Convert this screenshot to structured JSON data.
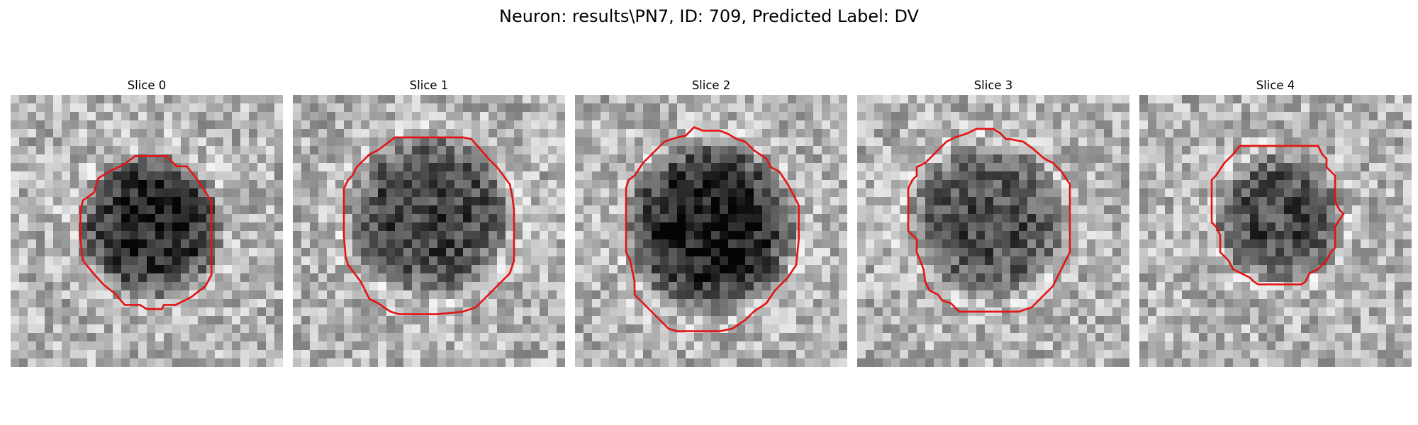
{
  "figure": {
    "title": "Neuron: results\\PN7, ID: 709, Predicted Label: DV",
    "contour_color": "#e41414",
    "grid_size": 32,
    "panels": [
      {
        "title": "Slice 0",
        "seed": 11,
        "blob": {
          "cx": 16.5,
          "cy": 15.5,
          "r": 9.0,
          "depth": 0.55
        },
        "contour": [
          [
            16.5,
            7.2
          ],
          [
            18.3,
            7.2
          ],
          [
            19.5,
            8.4
          ],
          [
            20.7,
            8.4
          ],
          [
            21.9,
            9.9
          ],
          [
            22.9,
            11.4
          ],
          [
            23.6,
            12.6
          ],
          [
            23.6,
            17.0
          ],
          [
            23.6,
            21.2
          ],
          [
            22.9,
            22.5
          ],
          [
            21.2,
            23.8
          ],
          [
            19.4,
            24.7
          ],
          [
            18.0,
            24.7
          ],
          [
            17.8,
            25.2
          ],
          [
            16.0,
            25.2
          ],
          [
            15.2,
            24.7
          ],
          [
            13.4,
            24.7
          ],
          [
            12.3,
            23.4
          ],
          [
            11.0,
            22.4
          ],
          [
            9.9,
            21.2
          ],
          [
            8.5,
            19.5
          ],
          [
            8.2,
            17.0
          ],
          [
            8.2,
            13.7
          ],
          [
            8.5,
            12.4
          ],
          [
            9.8,
            11.5
          ],
          [
            10.3,
            9.8
          ],
          [
            11.6,
            9.0
          ],
          [
            13.3,
            8.2
          ],
          [
            14.6,
            7.2
          ]
        ]
      },
      {
        "title": "Slice 1",
        "seed": 23,
        "blob": {
          "cx": 16.0,
          "cy": 14.0,
          "r": 10.0,
          "depth": 0.45
        },
        "contour": [
          [
            12.0,
            5.0
          ],
          [
            20.0,
            5.0
          ],
          [
            21.0,
            5.2
          ],
          [
            23.0,
            7.5
          ],
          [
            24.0,
            8.5
          ],
          [
            25.5,
            10.5
          ],
          [
            25.8,
            12.0
          ],
          [
            26.0,
            13.5
          ],
          [
            26.0,
            16.5
          ],
          [
            26.0,
            19.5
          ],
          [
            25.5,
            21.0
          ],
          [
            24.5,
            22.0
          ],
          [
            23.5,
            23.0
          ],
          [
            22.5,
            24.0
          ],
          [
            21.5,
            25.0
          ],
          [
            20.0,
            25.5
          ],
          [
            17.0,
            25.8
          ],
          [
            12.5,
            25.8
          ],
          [
            11.5,
            25.5
          ],
          [
            10.0,
            24.5
          ],
          [
            9.0,
            24.0
          ],
          [
            8.5,
            23.0
          ],
          [
            8.0,
            22.0
          ],
          [
            6.5,
            20.0
          ],
          [
            6.2,
            19.0
          ],
          [
            6.0,
            16.5
          ],
          [
            6.0,
            11.0
          ],
          [
            6.5,
            10.0
          ],
          [
            7.0,
            9.5
          ],
          [
            7.5,
            8.5
          ],
          [
            9.0,
            7.0
          ],
          [
            10.0,
            6.5
          ]
        ]
      },
      {
        "title": "Slice 2",
        "seed": 37,
        "blob": {
          "cx": 16.0,
          "cy": 15.5,
          "r": 10.5,
          "depth": 0.6
        },
        "contour": [
          [
            14.0,
            3.8
          ],
          [
            15.0,
            4.2
          ],
          [
            16.0,
            4.2
          ],
          [
            17.0,
            4.2
          ],
          [
            18.0,
            4.6
          ],
          [
            19.0,
            5.2
          ],
          [
            20.0,
            5.5
          ],
          [
            21.0,
            6.5
          ],
          [
            22.5,
            7.5
          ],
          [
            23.0,
            8.5
          ],
          [
            24.0,
            9.0
          ],
          [
            25.0,
            10.5
          ],
          [
            25.8,
            12.0
          ],
          [
            26.3,
            13.0
          ],
          [
            26.3,
            17.0
          ],
          [
            26.0,
            20.0
          ],
          [
            25.0,
            21.5
          ],
          [
            24.5,
            22.0
          ],
          [
            23.5,
            23.0
          ],
          [
            22.5,
            24.5
          ],
          [
            21.0,
            25.5
          ],
          [
            20.0,
            26.5
          ],
          [
            18.5,
            27.5
          ],
          [
            17.0,
            27.8
          ],
          [
            14.5,
            27.8
          ],
          [
            12.0,
            27.8
          ],
          [
            11.0,
            27.5
          ],
          [
            10.0,
            26.5
          ],
          [
            9.0,
            25.5
          ],
          [
            7.0,
            23.5
          ],
          [
            7.0,
            22.0
          ],
          [
            6.5,
            19.5
          ],
          [
            6.0,
            18.5
          ],
          [
            6.0,
            15.0
          ],
          [
            6.0,
            11.0
          ],
          [
            6.3,
            10.0
          ],
          [
            7.0,
            9.5
          ],
          [
            8.0,
            8.0
          ],
          [
            9.5,
            6.5
          ],
          [
            10.5,
            5.5
          ],
          [
            12.0,
            5.0
          ],
          [
            13.0,
            4.8
          ]
        ]
      },
      {
        "title": "Slice 3",
        "seed": 49,
        "blob": {
          "cx": 15.5,
          "cy": 14.8,
          "r": 9.5,
          "depth": 0.4
        },
        "contour": [
          [
            14.0,
            4.0
          ],
          [
            15.0,
            4.0
          ],
          [
            16.0,
            4.0
          ],
          [
            16.8,
            4.5
          ],
          [
            17.5,
            5.2
          ],
          [
            18.0,
            5.2
          ],
          [
            19.5,
            5.5
          ],
          [
            20.5,
            6.2
          ],
          [
            22.0,
            7.5
          ],
          [
            23.0,
            8.0
          ],
          [
            24.0,
            9.0
          ],
          [
            25.0,
            10.5
          ],
          [
            25.0,
            14.0
          ],
          [
            25.0,
            18.5
          ],
          [
            24.5,
            19.5
          ],
          [
            23.5,
            21.5
          ],
          [
            23.0,
            22.5
          ],
          [
            22.5,
            23.0
          ],
          [
            21.5,
            24.0
          ],
          [
            20.5,
            25.0
          ],
          [
            19.0,
            25.5
          ],
          [
            15.0,
            25.5
          ],
          [
            12.0,
            25.5
          ],
          [
            11.0,
            24.5
          ],
          [
            10.0,
            24.2
          ],
          [
            9.5,
            23.5
          ],
          [
            8.5,
            23.0
          ],
          [
            8.0,
            22.0
          ],
          [
            7.8,
            20.5
          ],
          [
            7.0,
            18.5
          ],
          [
            7.0,
            17.0
          ],
          [
            6.0,
            16.0
          ],
          [
            6.0,
            13.0
          ],
          [
            6.0,
            11.0
          ],
          [
            6.5,
            10.0
          ],
          [
            7.0,
            9.5
          ],
          [
            7.0,
            8.5
          ],
          [
            8.0,
            8.0
          ],
          [
            9.5,
            6.5
          ],
          [
            10.5,
            5.5
          ],
          [
            11.5,
            5.0
          ],
          [
            13.0,
            4.5
          ]
        ]
      },
      {
        "title": "Slice 4",
        "seed": 61,
        "blob": {
          "cx": 16.5,
          "cy": 14.5,
          "r": 8.0,
          "depth": 0.42
        },
        "contour": [
          [
            11.8,
            6.0
          ],
          [
            15.0,
            6.0
          ],
          [
            18.0,
            6.0
          ],
          [
            21.0,
            6.0
          ],
          [
            21.5,
            7.0
          ],
          [
            22.0,
            7.5
          ],
          [
            22.0,
            8.5
          ],
          [
            23.0,
            9.5
          ],
          [
            23.0,
            10.5
          ],
          [
            23.0,
            12.5
          ],
          [
            23.5,
            13.5
          ],
          [
            24.0,
            14.0
          ],
          [
            23.5,
            14.7
          ],
          [
            23.0,
            15.5
          ],
          [
            23.0,
            18.0
          ],
          [
            22.5,
            18.5
          ],
          [
            22.0,
            19.5
          ],
          [
            21.5,
            20.0
          ],
          [
            21.0,
            20.5
          ],
          [
            20.0,
            21.0
          ],
          [
            19.5,
            22.0
          ],
          [
            19.0,
            22.3
          ],
          [
            17.0,
            22.3
          ],
          [
            14.0,
            22.3
          ],
          [
            13.5,
            22.0
          ],
          [
            13.0,
            21.5
          ],
          [
            12.0,
            21.0
          ],
          [
            11.0,
            20.5
          ],
          [
            10.5,
            19.5
          ],
          [
            9.5,
            18.5
          ],
          [
            9.5,
            16.5
          ],
          [
            9.0,
            15.5
          ],
          [
            8.5,
            15.0
          ],
          [
            8.5,
            14.0
          ],
          [
            8.5,
            12.5
          ],
          [
            8.5,
            10.0
          ],
          [
            9.0,
            9.5
          ],
          [
            10.0,
            8.0
          ],
          [
            11.0,
            7.0
          ]
        ]
      }
    ]
  }
}
